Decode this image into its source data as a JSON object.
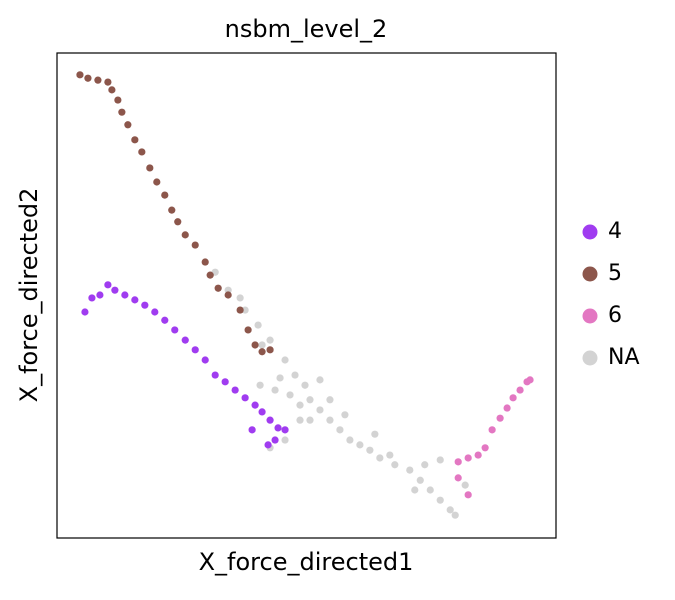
{
  "chart_data": {
    "type": "scatter",
    "title": "nsbm_level_2",
    "xlabel": "X_force_directed1",
    "ylabel": "X_force_directed2",
    "xlim": [
      0,
      100
    ],
    "ylim": [
      0,
      100
    ],
    "legend": "right",
    "series": [
      {
        "name": "4",
        "color": "#a03cf0",
        "x": [
          5.6,
          7.0,
          8.6,
          10.2,
          11.6,
          13.6,
          15.6,
          17.6,
          19.6,
          21.6,
          23.6,
          25.7,
          27.7,
          29.7,
          31.7,
          33.7,
          35.7,
          37.7,
          39.7,
          41.1,
          42.7,
          44.3,
          45.7,
          43.7,
          42.3,
          39.1
        ],
        "y": [
          46.6,
          49.5,
          50.1,
          52.2,
          51.1,
          50.1,
          49.1,
          48.0,
          46.6,
          44.9,
          42.9,
          40.8,
          38.8,
          36.7,
          33.6,
          32.2,
          30.5,
          28.9,
          27.4,
          26.0,
          24.3,
          22.7,
          22.3,
          20.2,
          19.2,
          22.3
        ]
      },
      {
        "name": "5",
        "color": "#8c564b",
        "x": [
          4.6,
          6.2,
          8.2,
          10.2,
          11.0,
          12.2,
          13.0,
          14.2,
          15.6,
          17.0,
          18.6,
          20.0,
          21.6,
          23.0,
          24.2,
          25.7,
          27.7,
          29.7,
          30.7,
          32.3,
          34.3,
          36.7,
          38.3,
          39.7,
          41.1,
          42.7
        ],
        "y": [
          95.5,
          94.8,
          94.4,
          94.0,
          92.4,
          90.3,
          87.8,
          85.2,
          82.1,
          79.6,
          76.3,
          73.4,
          70.7,
          67.6,
          65.2,
          62.5,
          60.4,
          56.9,
          54.2,
          51.5,
          50.1,
          47.0,
          42.9,
          39.8,
          38.4,
          38.8
        ]
      },
      {
        "name": "6",
        "color": "#e377c2",
        "x": [
          80.4,
          82.4,
          84.4,
          85.8,
          87.2,
          88.8,
          90.2,
          91.4,
          92.8,
          94.2,
          94.8,
          80.4,
          82.4
        ],
        "y": [
          15.7,
          16.5,
          17.1,
          18.6,
          22.3,
          24.7,
          26.8,
          28.9,
          30.5,
          32.2,
          32.6,
          12.4,
          8.9
        ]
      },
      {
        "name": "NA",
        "color": "#d3d3d3",
        "x": [
          31.7,
          34.3,
          37.7,
          40.3,
          42.7,
          45.7,
          47.7,
          49.7,
          46.7,
          43.7,
          40.7,
          50.7,
          52.7,
          54.7,
          48.7,
          56.7,
          58.7,
          60.7,
          62.7,
          64.7,
          67.7,
          70.7,
          72.8,
          74.8,
          76.8,
          78.8,
          79.8,
          81.8,
          76.8,
          73.7,
          71.7,
          54.7,
          57.7,
          52.7,
          50.7,
          45.7,
          42.7,
          63.7,
          66.7,
          48.7,
          36.7,
          41.1,
          44.7
        ],
        "y": [
          54.8,
          51.1,
          47.0,
          43.9,
          40.8,
          36.7,
          33.6,
          31.5,
          29.5,
          30.5,
          31.5,
          28.5,
          26.4,
          24.3,
          24.3,
          22.3,
          20.2,
          19.2,
          18.1,
          16.5,
          15.1,
          14.0,
          11.9,
          9.9,
          7.8,
          5.8,
          4.7,
          10.9,
          16.1,
          15.1,
          9.9,
          28.5,
          25.4,
          32.6,
          24.3,
          20.2,
          18.6,
          21.4,
          17.1,
          27.4,
          49.5,
          39.8,
          33.0
        ]
      }
    ]
  }
}
